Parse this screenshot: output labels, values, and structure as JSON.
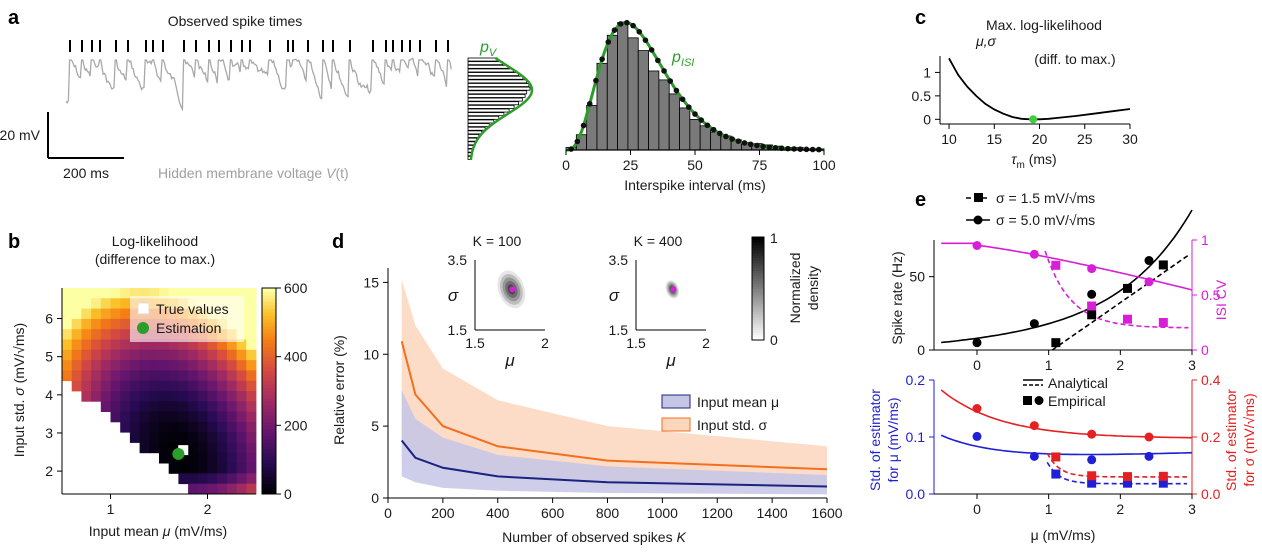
{
  "panels": {
    "a": {
      "letter": "a",
      "spike_title": "Observed spike times",
      "scale_v": "20 mV",
      "scale_t": "200 ms",
      "voltage_label_pre": "Hidden membrane voltage ",
      "voltage_label_var": "V",
      "voltage_label_post": "(t)",
      "pv_label": "p",
      "pv_sub": "V",
      "pisi_label": "p",
      "pisi_sub": "ISI",
      "isi_xlabel": "Interspike interval (ms)"
    },
    "b": {
      "letter": "b",
      "title_line1": "Log-likelihood",
      "title_line2": "(difference to max.)",
      "ylabel_pre": "Input std. ",
      "ylabel_var": "σ",
      "ylabel_unit": "(mV/√ms)",
      "xlabel_pre": "Input mean ",
      "xlabel_var": "μ",
      "xlabel_unit": "(mV/ms)",
      "legend_true": "True values",
      "legend_est": "Estimation",
      "colorbar_ticks": [
        "0",
        "200",
        "400",
        "600"
      ]
    },
    "c": {
      "letter": "c",
      "title": "Max. log-likelihood",
      "title_sub": "μ,σ",
      "title_line2": "(diff. to max.)",
      "xlabel_var": "τ",
      "xlabel_sub": "m",
      "xlabel_unit": " (ms)"
    },
    "d": {
      "letter": "d",
      "ylabel": "Relative error (%)",
      "xlabel_pre": "Number of observed spikes ",
      "xlabel_var": "K",
      "inset1": "K = 100",
      "inset2": "K = 400",
      "inset_ylab": "σ",
      "inset_xlab": "μ",
      "inset_yticks": [
        "3.5",
        "1.5"
      ],
      "inset_xticks": [
        "1.5",
        "2"
      ],
      "cbar_ticks": [
        "1",
        "0"
      ],
      "cbar_label_1": "Normalized",
      "cbar_label_2": "density",
      "legend_mu": "Input mean μ",
      "legend_sigma": "Input std. σ"
    },
    "e": {
      "letter": "e",
      "legend_sq": "σ = 1.5 mV/√ms",
      "legend_dot": "σ = 5.0 mV/√ms",
      "ylabel_top_left": "Spike rate (Hz)",
      "ylabel_top_right": "ISI CV",
      "legend_analytical": "Analytical",
      "legend_empirical": "Empirical",
      "ylabel_bot_left_1": "Std. of estimator",
      "ylabel_bot_left_2": "for μ (mV/ms)",
      "ylabel_bot_right_1": "Std. of estimator",
      "ylabel_bot_right_2": "for σ (mV/√ms)",
      "xlabel": "μ (mV/ms)"
    }
  },
  "colors": {
    "green": "#2a9d2a",
    "blue": "#1f1fd6",
    "red": "#e52020",
    "magenta": "#d61fd6",
    "orange": "#f07020",
    "navy": "#1a237e",
    "gray": "#a8a8a8"
  },
  "chart_data": [
    {
      "type": "histogram",
      "panel": "a-isi",
      "xlabel": "Interspike interval (ms)",
      "xlim": [
        0,
        100
      ],
      "x_ticks": [
        0,
        25,
        50,
        75,
        100
      ],
      "bin_edges": [
        0,
        4,
        8,
        12,
        16,
        20,
        24,
        28,
        32,
        36,
        40,
        44,
        48,
        52,
        56,
        60,
        64,
        68,
        72,
        76,
        80,
        84,
        88,
        92,
        96,
        100
      ],
      "counts": [
        0.02,
        0.12,
        0.35,
        0.68,
        0.9,
        1.0,
        0.88,
        0.78,
        0.62,
        0.55,
        0.44,
        0.33,
        0.24,
        0.19,
        0.14,
        0.11,
        0.08,
        0.06,
        0.05,
        0.04,
        0.03,
        0.02,
        0.02,
        0.01,
        0.01
      ],
      "fit_label": "p_ISI"
    },
    {
      "type": "heatmap",
      "panel": "b",
      "title": "Log-likelihood (difference to max.)",
      "xlabel": "Input mean μ (mV/ms)",
      "ylabel": "Input std. σ (mV/√ms)",
      "x_ticks": [
        1,
        2
      ],
      "y_ticks": [
        2,
        3,
        4,
        5,
        6
      ],
      "xlim": [
        0.5,
        2.5
      ],
      "ylim": [
        1.4,
        6.8
      ],
      "colorbar_range": [
        0,
        600
      ],
      "colorbar_ticks": [
        0,
        200,
        400,
        600
      ],
      "true_value": {
        "mu": 1.75,
        "sigma": 2.55
      },
      "estimation": {
        "mu": 1.7,
        "sigma": 2.45
      }
    },
    {
      "type": "line",
      "panel": "c",
      "title": "Max. log-likelihood μ,σ (diff. to max.)",
      "xlabel": "τm (ms)",
      "xlim": [
        9,
        30
      ],
      "ylim": [
        -0.1,
        1.35
      ],
      "x_ticks": [
        10,
        15,
        20,
        25,
        30
      ],
      "y_ticks": [
        0,
        0.5,
        1
      ],
      "x": [
        10,
        11,
        12,
        13,
        14,
        15,
        16,
        17,
        18,
        19,
        20,
        21,
        22,
        24,
        26,
        28,
        30
      ],
      "y": [
        1.3,
        0.95,
        0.7,
        0.5,
        0.33,
        0.21,
        0.12,
        0.05,
        0.01,
        0.0,
        0.0,
        0.01,
        0.03,
        0.07,
        0.12,
        0.17,
        0.22
      ],
      "marker": {
        "x": 19.3,
        "y": 0.0
      }
    },
    {
      "type": "line",
      "panel": "d",
      "ylabel": "Relative error (%)",
      "xlabel": "Number of observed spikes K",
      "xlim": [
        0,
        1600
      ],
      "ylim": [
        0,
        16
      ],
      "x_ticks": [
        0,
        200,
        400,
        600,
        800,
        1000,
        1200,
        1400,
        1600
      ],
      "y_ticks": [
        0,
        5,
        10,
        15
      ],
      "x": [
        50,
        100,
        200,
        400,
        800,
        1600
      ],
      "series": [
        {
          "name": "Input mean μ",
          "values": [
            4.0,
            2.8,
            2.1,
            1.5,
            1.1,
            0.8
          ],
          "lower": [
            1.5,
            1.1,
            0.7,
            0.5,
            0.35,
            0.25
          ],
          "upper": [
            7.5,
            5.5,
            4.2,
            3.0,
            2.2,
            1.6
          ]
        },
        {
          "name": "Input std. σ",
          "values": [
            10.9,
            7.2,
            5.0,
            3.6,
            2.6,
            2.0
          ],
          "lower": [
            4.0,
            2.8,
            2.0,
            1.5,
            1.1,
            0.8
          ],
          "upper": [
            15.2,
            12.0,
            9.0,
            6.8,
            5.0,
            3.6
          ]
        }
      ]
    },
    {
      "type": "line",
      "panel": "e-top",
      "ylabel_left": "Spike rate (Hz)",
      "ylabel_right": "ISI CV",
      "xlim": [
        -0.6,
        3
      ],
      "ylim_left": [
        0,
        75
      ],
      "ylim_right": [
        0,
        1
      ],
      "x_ticks": [
        0,
        1,
        2,
        3
      ],
      "y_ticks_left": [
        0,
        50
      ],
      "y_ticks_right": [
        0,
        0.5,
        1
      ],
      "series": [
        {
          "name": "σ = 1.5 mV/√ms",
          "axis": "left",
          "x": [
            1.1,
            1.6,
            2.1,
            2.6
          ],
          "values": [
            5,
            24,
            42,
            58
          ]
        },
        {
          "name": "σ = 5.0 mV/√ms",
          "axis": "left",
          "x": [
            0,
            0.8,
            1.6,
            2.4
          ],
          "values": [
            5,
            18,
            38,
            61
          ]
        },
        {
          "name": "CV σ = 1.5",
          "axis": "right",
          "x": [
            1.1,
            1.6,
            2.1,
            2.6
          ],
          "values": [
            0.77,
            0.4,
            0.28,
            0.25
          ]
        },
        {
          "name": "CV σ = 5.0",
          "axis": "right",
          "x": [
            0,
            0.8,
            1.6,
            2.4
          ],
          "values": [
            0.95,
            0.87,
            0.74,
            0.62
          ]
        }
      ]
    },
    {
      "type": "line",
      "panel": "e-bottom",
      "xlabel": "μ (mV/ms)",
      "xlim": [
        -0.6,
        3
      ],
      "ylim_left": [
        0,
        0.2
      ],
      "ylim_right": [
        0,
        0.4
      ],
      "x_ticks": [
        0,
        1,
        2,
        3
      ],
      "y_ticks_left": [
        0,
        0.1,
        0.2
      ],
      "y_ticks_right": [
        0,
        0.2,
        0.4
      ],
      "series": [
        {
          "name": "μ estimator σ = 5.0",
          "x": [
            0,
            0.8,
            1.6,
            2.4
          ],
          "values": [
            0.101,
            0.066,
            0.06,
            0.066
          ]
        },
        {
          "name": "μ estimator σ = 1.5",
          "x": [
            1.1,
            1.6,
            2.1,
            2.6
          ],
          "values": [
            0.035,
            0.019,
            0.019,
            0.019
          ]
        },
        {
          "name": "σ estimator σ = 5.0",
          "x": [
            0,
            0.8,
            1.6,
            2.4
          ],
          "values": [
            0.3,
            0.24,
            0.21,
            0.2
          ]
        },
        {
          "name": "σ estimator σ = 1.5",
          "x": [
            1.1,
            1.6,
            2.1,
            2.6
          ],
          "values": [
            0.13,
            0.064,
            0.061,
            0.062
          ]
        }
      ]
    }
  ]
}
